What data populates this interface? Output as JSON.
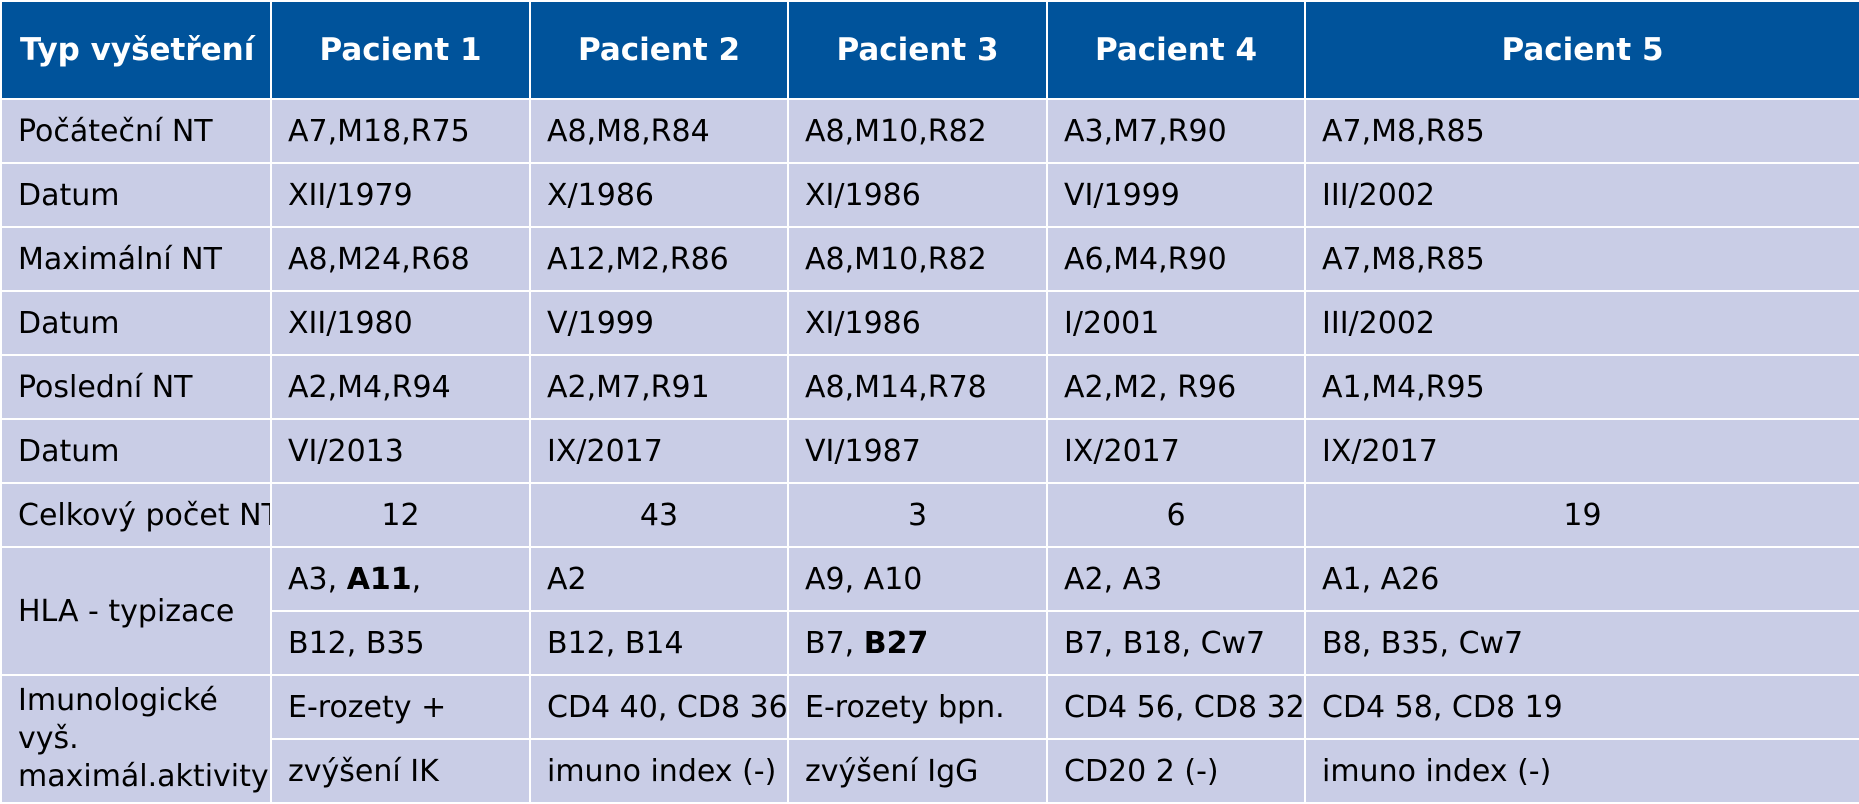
{
  "headers": [
    "Typ vyšetření",
    "Pacient 1",
    "Pacient 2",
    "Pacient 3",
    "Pacient 4",
    "Pacient 5"
  ],
  "rows": [
    {
      "label": "Počáteční NT",
      "cells": [
        "A7,M18,R75",
        "A8,M8,R84",
        "A8,M10,R82",
        "A3,M7,R90",
        "A7,M8,R85"
      ]
    },
    {
      "label": "Datum",
      "cells": [
        "XII/1979",
        "X/1986",
        "XI/1986",
        "VI/1999",
        "III/2002"
      ]
    },
    {
      "label": "Maximální NT",
      "cells": [
        "A8,M24,R68",
        "A12,M2,R86",
        "A8,M10,R82",
        "A6,M4,R90",
        "A7,M8,R85"
      ]
    },
    {
      "label": "Datum",
      "cells": [
        "XII/1980",
        "V/1999",
        "XI/1986",
        "I/2001",
        "III/2002"
      ]
    },
    {
      "label": "Poslední NT",
      "cells": [
        "A2,M4,R94",
        "A2,M7,R91",
        "A8,M14,R78",
        "A2,M2, R96",
        "A1,M4,R95"
      ]
    },
    {
      "label": "Datum",
      "cells": [
        "VI/2013",
        "IX/2017",
        "VI/1987",
        "IX/2017",
        "IX/2017"
      ]
    },
    {
      "label": "Celkový počet NT",
      "cells": [
        "12",
        "43",
        "3",
        "6",
        "19"
      ]
    }
  ],
  "hla": {
    "label": "HLA - typizace",
    "row_a": [
      {
        "plain": "A3, ",
        "bold": "A11",
        "tail": ","
      },
      {
        "plain": "A2",
        "bold": "",
        "tail": ""
      },
      {
        "plain": "A9, A10",
        "bold": "",
        "tail": ""
      },
      {
        "plain": "A2, A3",
        "bold": "",
        "tail": ""
      },
      {
        "plain": "A1, A26",
        "bold": "",
        "tail": ""
      }
    ],
    "row_b": [
      {
        "plain": "B12, B35",
        "bold": "",
        "tail": ""
      },
      {
        "plain": "B12, B14",
        "bold": "",
        "tail": ""
      },
      {
        "plain": "B7, ",
        "bold": "B27",
        "tail": ""
      },
      {
        "plain": "B7, B18, Cw7",
        "bold": "",
        "tail": ""
      },
      {
        "plain": "B8, B35, Cw7",
        "bold": "",
        "tail": ""
      }
    ]
  },
  "imuno": {
    "label_line1": "Imunologické vyš.",
    "label_line2": "maximál.aktivity",
    "row_a": [
      "E-rozety +",
      "CD4 40, CD8 36",
      "E-rozety bpn.",
      "CD4 56, CD8 32",
      "CD4 58, CD8 19"
    ],
    "row_b": [
      "zvýšení IK",
      "imuno index (-)",
      "zvýšení IgG",
      "CD20 2 (-)",
      "imuno index (-)"
    ]
  },
  "colors": {
    "header_bg": "#00539b",
    "cell_bg": "#c9cde6",
    "border": "#ffffff"
  }
}
